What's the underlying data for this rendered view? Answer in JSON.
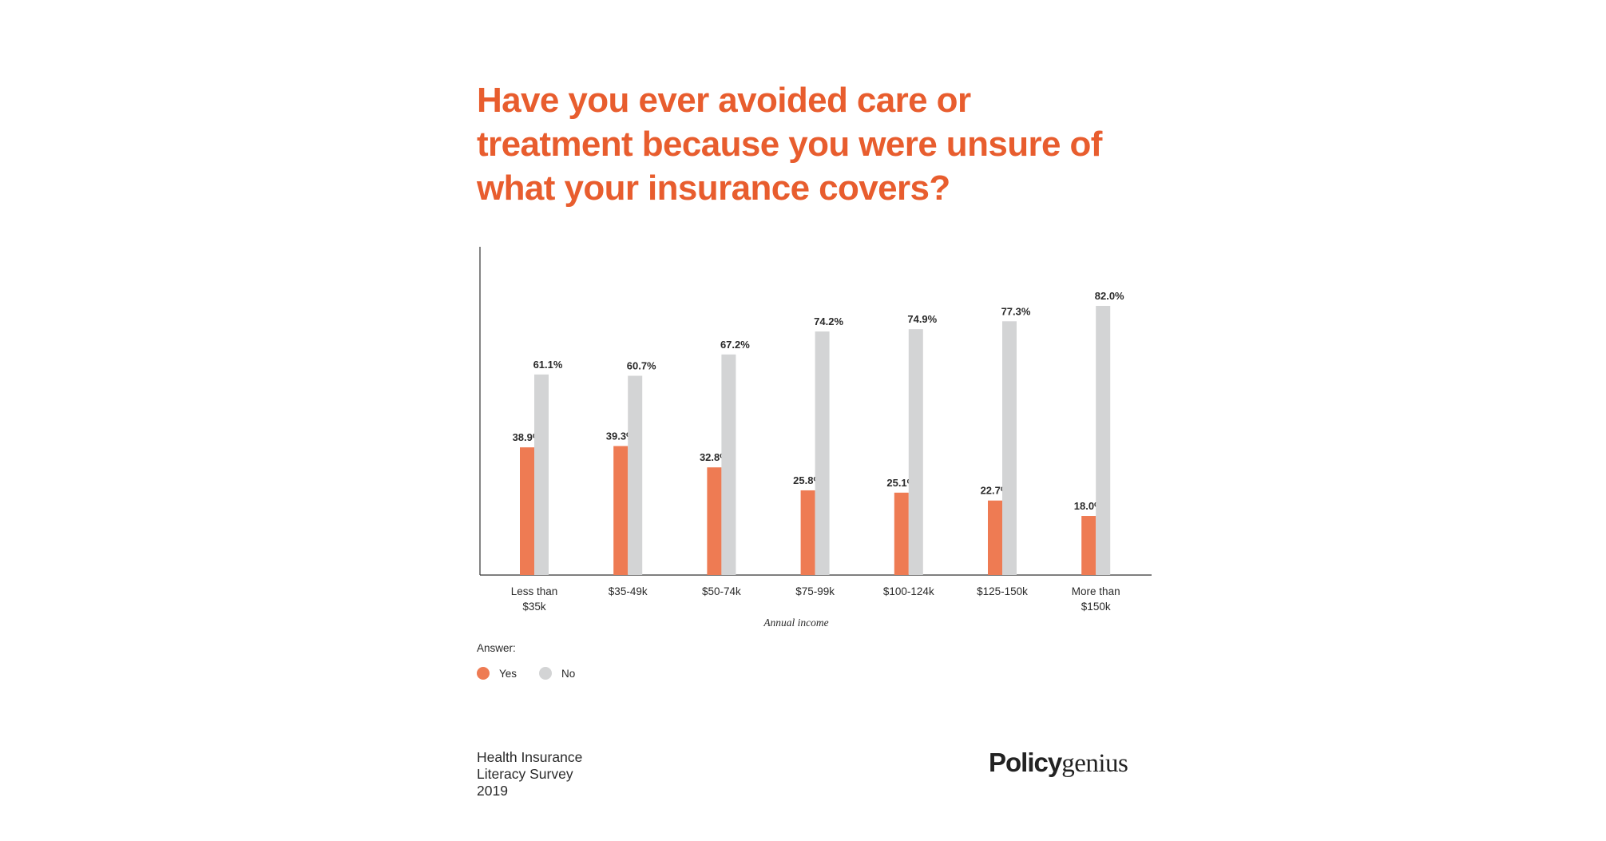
{
  "chart_data": {
    "type": "bar",
    "title": "Have you ever avoided care or treatment because you were unsure of what your insurance covers?",
    "xlabel": "Annual income",
    "ylabel": "",
    "ylim": [
      0,
      100
    ],
    "grid": false,
    "categories": [
      "Less than\n$35k",
      "$35-49k",
      "$50-74k",
      "$75-99k",
      "$100-124k",
      "$125-150k",
      "More than\n$150k"
    ],
    "series": [
      {
        "name": "Yes",
        "color": "#ee7b53",
        "values": [
          38.9,
          39.3,
          32.8,
          25.8,
          25.1,
          22.7,
          18.0
        ],
        "labels": [
          "38.9%",
          "39.3%",
          "32.8%",
          "25.8%",
          "25.1%",
          "22.7%",
          "18.0%"
        ]
      },
      {
        "name": "No",
        "color": "#d3d4d5",
        "values": [
          61.1,
          60.7,
          67.2,
          74.2,
          74.9,
          77.3,
          82.0
        ],
        "labels": [
          "61.1%",
          "60.7%",
          "67.2%",
          "74.2%",
          "74.9%",
          "77.3%",
          "82.0%"
        ]
      }
    ],
    "legend_title": "Answer:",
    "legend_placement": "bottom-left"
  },
  "footer": {
    "lines": [
      "Health Insurance",
      "Literacy Survey",
      "2019"
    ],
    "logo": {
      "bold": "Policy",
      "regular": "genius"
    }
  },
  "colors": {
    "title": "#e85d2e",
    "yes": "#ee7b53",
    "no": "#d3d4d5"
  }
}
